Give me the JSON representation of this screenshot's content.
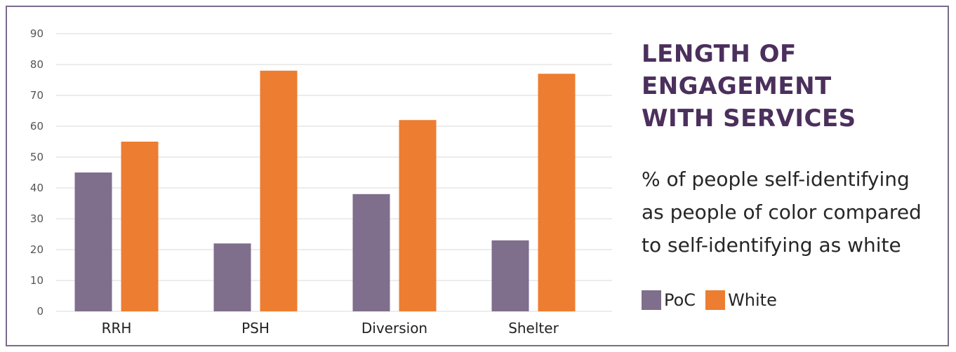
{
  "colors": {
    "poc": "#7f6e8c",
    "white": "#ed7d31",
    "grid": "#d9d9d9",
    "title": "#4b2f5c"
  },
  "title_lines": [
    "LENGTH OF",
    "ENGAGEMENT",
    "WITH SERVICES"
  ],
  "subtitle_lines": [
    "% of people self-identifying",
    "as people of color compared",
    "to self-identifying as white"
  ],
  "legend": {
    "poc": "PoC",
    "white": "White"
  },
  "chart_data": {
    "type": "bar",
    "categories": [
      "RRH",
      "PSH",
      "Diversion",
      "Shelter"
    ],
    "series": [
      {
        "name": "PoC",
        "values": [
          45,
          22,
          38,
          23
        ]
      },
      {
        "name": "White",
        "values": [
          55,
          78,
          62,
          77
        ]
      }
    ],
    "ylim": [
      0,
      90
    ],
    "yticks": [
      0,
      10,
      20,
      30,
      40,
      50,
      60,
      70,
      80,
      90
    ],
    "grid": true,
    "legend_position": "right"
  }
}
